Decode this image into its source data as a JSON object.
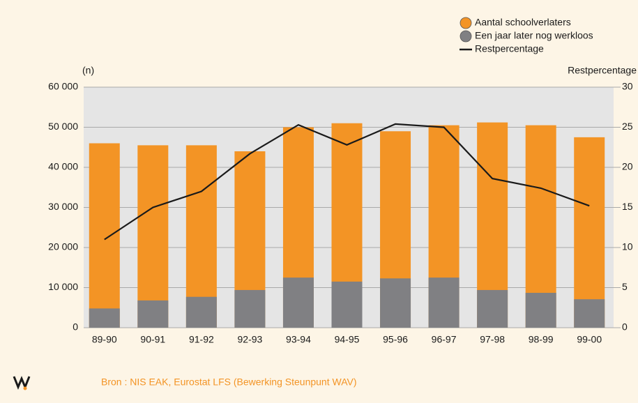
{
  "chart_data": {
    "type": "bar",
    "categories": [
      "89-90",
      "90-91",
      "91-92",
      "92-93",
      "93-94",
      "94-95",
      "95-96",
      "96-97",
      "97-98",
      "98-99",
      "99-00"
    ],
    "series": [
      {
        "name": "Aantal schoolverlaters",
        "type": "bar",
        "color": "#f39425",
        "values": [
          46000,
          45500,
          45500,
          44000,
          50000,
          51000,
          49000,
          50500,
          51200,
          50500,
          47500
        ]
      },
      {
        "name": "Een jaar later nog werkloos",
        "type": "bar",
        "color": "#808083",
        "values": [
          4800,
          6800,
          7700,
          9400,
          12500,
          11500,
          12300,
          12500,
          9400,
          8700,
          7100
        ]
      },
      {
        "name": "Restpercentage",
        "type": "line",
        "axis": "y2",
        "color": "#1a1a1a",
        "values": [
          11,
          15,
          17,
          21.7,
          25.3,
          22.8,
          25.4,
          25,
          18.6,
          17.4,
          15.2
        ]
      }
    ],
    "y_label": "(n)",
    "y2_label": "Restpercentage",
    "ylim": [
      0,
      60000
    ],
    "yticks": [
      0,
      {
        "value": 10000,
        "label": "10 000"
      },
      {
        "value": 20000,
        "label": "20 000"
      },
      {
        "value": 30000,
        "label": "30 000"
      },
      {
        "value": 40000,
        "label": "40 000"
      },
      {
        "value": 50000,
        "label": "50 000"
      },
      {
        "value": 60000,
        "label": "60 000"
      }
    ],
    "y2lim": [
      0,
      30
    ],
    "y2ticks": [
      0,
      5,
      10,
      15,
      20,
      25,
      30
    ],
    "grid": true,
    "legend": "top-right",
    "source": "Bron : NIS EAK, Eurostat LFS (Bewerking Steunpunt WAV)"
  }
}
